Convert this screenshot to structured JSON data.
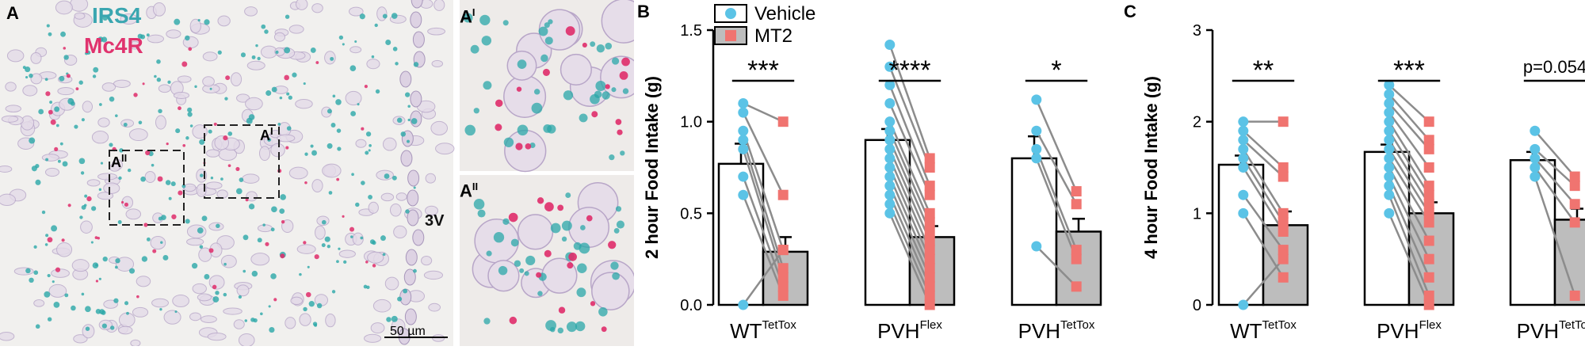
{
  "panel_a": {
    "label": "A",
    "channel_1": "IRS4",
    "channel_1_color": "#3aa6b0",
    "channel_2": "Mc4R",
    "channel_2_color": "#e0336e",
    "inset_1_label": "A",
    "inset_1_sup": "I",
    "inset_2_label": "A",
    "inset_2_sup": "II",
    "box_1_label": "A",
    "box_1_sup": "I",
    "box_2_label": "A",
    "box_2_sup": "II",
    "region_label": "3V",
    "scale_bar": "50 µm"
  },
  "chart_data": [
    {
      "panel": "B",
      "type": "bar",
      "ylabel": "2 hour Food Intake (g)",
      "ylim": [
        0,
        1.5
      ],
      "yticks": [
        "0.0",
        "0.5",
        "1.0",
        "1.5"
      ],
      "groups": [
        {
          "name": "WT",
          "sup": "TetTox"
        },
        {
          "name": "PVH",
          "sup": "Flex"
        },
        {
          "name": "PVH",
          "sup": "TetTox"
        }
      ],
      "legend": [
        "Vehicle",
        "MT2"
      ],
      "legend_position": "top",
      "series": [
        {
          "name": "Vehicle",
          "color": "#ffffff",
          "point_color": "#5bc3e6",
          "values": [
            0.77,
            0.9,
            0.8
          ],
          "errors": [
            0.11,
            0.06,
            0.12
          ]
        },
        {
          "name": "MT2",
          "color": "#bdbdbd",
          "point_color": "#f07470",
          "values": [
            0.29,
            0.37,
            0.4
          ],
          "errors": [
            0.08,
            0.06,
            0.07
          ]
        }
      ],
      "pairs": [
        [
          [
            1.1,
            1.0
          ],
          [
            1.05,
            0.6
          ],
          [
            0.95,
            0.3
          ],
          [
            0.9,
            0.2
          ],
          [
            0.85,
            0.15
          ],
          [
            0.7,
            0.1
          ],
          [
            0.6,
            0.05
          ],
          [
            0.0,
            0.3
          ]
        ],
        [
          [
            1.42,
            0.8
          ],
          [
            1.3,
            0.75
          ],
          [
            1.2,
            0.65
          ],
          [
            1.1,
            0.6
          ],
          [
            1.0,
            0.5
          ],
          [
            0.95,
            0.45
          ],
          [
            0.9,
            0.4
          ],
          [
            0.85,
            0.35
          ],
          [
            0.8,
            0.3
          ],
          [
            0.75,
            0.25
          ],
          [
            0.7,
            0.2
          ],
          [
            0.65,
            0.15
          ],
          [
            0.6,
            0.1
          ],
          [
            0.55,
            0.05
          ],
          [
            0.5,
            0.0
          ]
        ],
        [
          [
            1.12,
            0.62
          ],
          [
            0.95,
            0.55
          ],
          [
            0.85,
            0.3
          ],
          [
            0.8,
            0.25
          ],
          [
            0.32,
            0.1
          ]
        ]
      ],
      "significance": [
        "***",
        "****",
        "*"
      ]
    },
    {
      "panel": "C",
      "type": "bar",
      "ylabel": "4 hour Food Intake (g)",
      "ylim": [
        0,
        3
      ],
      "yticks": [
        "0",
        "1",
        "2",
        "3"
      ],
      "groups": [
        {
          "name": "WT",
          "sup": "TetTox"
        },
        {
          "name": "PVH",
          "sup": "Flex"
        },
        {
          "name": "PVH",
          "sup": "TetTox"
        }
      ],
      "series": [
        {
          "name": "Vehicle",
          "color": "#ffffff",
          "point_color": "#5bc3e6",
          "values": [
            1.53,
            1.67,
            1.58
          ],
          "errors": [
            0.1,
            0.08,
            0.09
          ]
        },
        {
          "name": "MT2",
          "color": "#bdbdbd",
          "point_color": "#f07470",
          "values": [
            0.87,
            1.0,
            0.93
          ],
          "errors": [
            0.15,
            0.12,
            0.12
          ]
        }
      ],
      "pairs": [
        [
          [
            2.0,
            2.0
          ],
          [
            1.9,
            1.5
          ],
          [
            1.8,
            1.4
          ],
          [
            1.7,
            1.0
          ],
          [
            1.6,
            0.9
          ],
          [
            1.5,
            0.8
          ],
          [
            1.2,
            0.6
          ],
          [
            1.0,
            0.3
          ],
          [
            0.0,
            0.5
          ]
        ],
        [
          [
            2.4,
            2.0
          ],
          [
            2.3,
            1.8
          ],
          [
            2.2,
            1.7
          ],
          [
            2.1,
            1.5
          ],
          [
            2.0,
            1.3
          ],
          [
            1.9,
            1.2
          ],
          [
            1.8,
            1.1
          ],
          [
            1.7,
            1.0
          ],
          [
            1.6,
            0.9
          ],
          [
            1.5,
            0.7
          ],
          [
            1.4,
            0.5
          ],
          [
            1.3,
            0.3
          ],
          [
            1.2,
            0.1
          ],
          [
            1.0,
            0.0
          ]
        ],
        [
          [
            1.9,
            1.4
          ],
          [
            1.7,
            1.3
          ],
          [
            1.6,
            1.1
          ],
          [
            1.5,
            0.9
          ],
          [
            1.4,
            0.1
          ]
        ]
      ],
      "significance": [
        "**",
        "***",
        "p=0.054"
      ]
    }
  ]
}
